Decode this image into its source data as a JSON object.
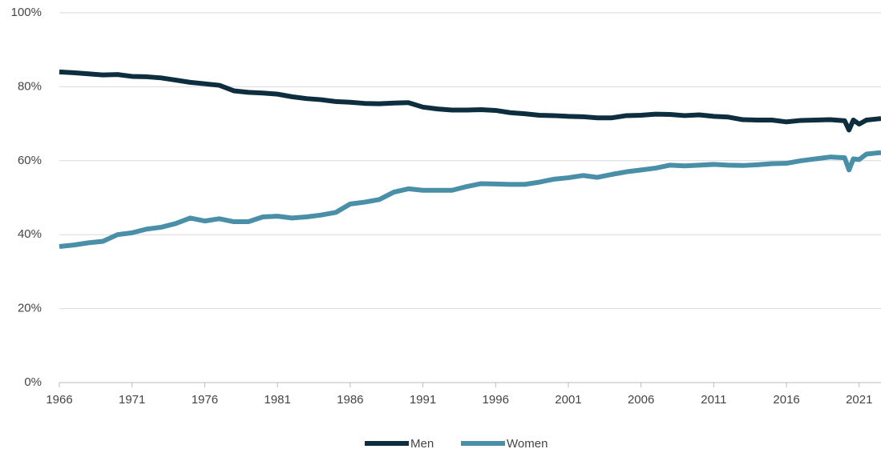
{
  "chart_data": {
    "type": "line",
    "x": [
      1966,
      1967,
      1968,
      1969,
      1970,
      1971,
      1972,
      1973,
      1974,
      1975,
      1976,
      1977,
      1978,
      1979,
      1980,
      1981,
      1982,
      1983,
      1984,
      1985,
      1986,
      1987,
      1988,
      1989,
      1990,
      1991,
      1992,
      1993,
      1994,
      1995,
      1996,
      1997,
      1998,
      1999,
      2000,
      2001,
      2002,
      2003,
      2004,
      2005,
      2006,
      2007,
      2008,
      2009,
      2010,
      2011,
      2012,
      2013,
      2014,
      2015,
      2016,
      2017,
      2018,
      2019,
      2020,
      2020.3,
      2020.6,
      2021,
      2021.5,
      2022,
      2022.5
    ],
    "series": [
      {
        "name": "Men",
        "color": "#0d2e3e",
        "values": [
          84,
          83.8,
          83.5,
          83.2,
          83.3,
          82.8,
          82.7,
          82.4,
          81.8,
          81.2,
          80.8,
          80.4,
          78.9,
          78.5,
          78.3,
          78,
          77.3,
          76.8,
          76.5,
          76,
          75.8,
          75.5,
          75.4,
          75.6,
          75.7,
          74.5,
          74,
          73.7,
          73.7,
          73.8,
          73.6,
          73,
          72.7,
          72.3,
          72.2,
          72,
          71.9,
          71.6,
          71.6,
          72.2,
          72.3,
          72.6,
          72.5,
          72.2,
          72.4,
          72,
          71.8,
          71.1,
          71,
          71,
          70.5,
          70.9,
          71,
          71.1,
          70.8,
          68.3,
          71,
          69.9,
          71,
          71.2,
          71.4
        ]
      },
      {
        "name": "Women",
        "color": "#4a8fa8",
        "values": [
          36.8,
          37.2,
          37.8,
          38.2,
          40,
          40.5,
          41.5,
          42,
          43,
          44.5,
          43.7,
          44.3,
          43.5,
          43.5,
          44.8,
          45,
          44.5,
          44.8,
          45.3,
          46,
          48.3,
          48.8,
          49.5,
          51.5,
          52.4,
          52,
          52,
          52,
          53,
          53.8,
          53.7,
          53.6,
          53.6,
          54.2,
          55,
          55.4,
          56,
          55.5,
          56.3,
          57,
          57.5,
          58,
          58.8,
          58.6,
          58.8,
          59,
          58.8,
          58.7,
          58.9,
          59.2,
          59.3,
          60,
          60.5,
          61,
          60.8,
          57.5,
          60.5,
          60.3,
          61.8,
          62,
          62.2
        ]
      }
    ],
    "xlim": [
      1966,
      2022.5
    ],
    "xticks": [
      1966,
      1971,
      1976,
      1981,
      1986,
      1991,
      1996,
      2001,
      2006,
      2011,
      2016,
      2021
    ],
    "ylim": [
      0,
      100
    ],
    "yticks": [
      {
        "value": 0,
        "label": "0%"
      },
      {
        "value": 20,
        "label": "20%"
      },
      {
        "value": 40,
        "label": "40%"
      },
      {
        "value": 60,
        "label": "60%"
      },
      {
        "value": 80,
        "label": "80%"
      },
      {
        "value": 100,
        "label": "100%"
      }
    ],
    "grid": true,
    "legend": "bottom"
  }
}
